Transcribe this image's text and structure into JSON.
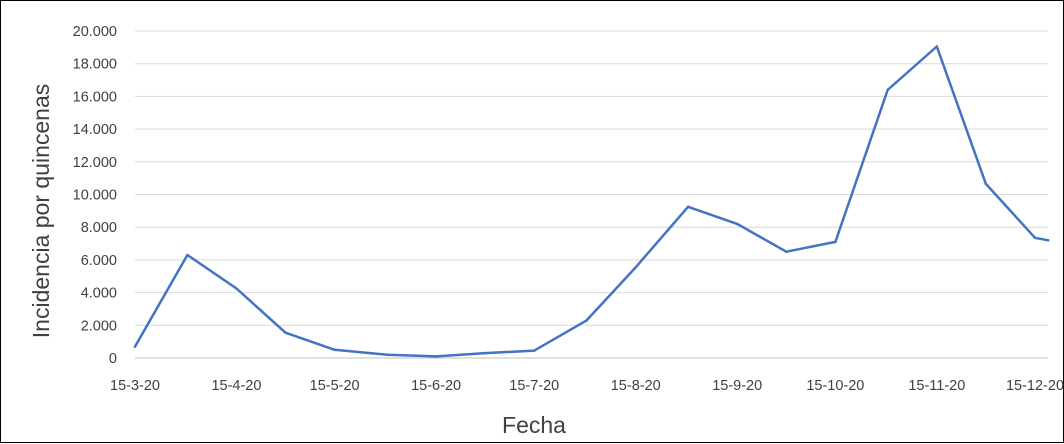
{
  "chart_data": {
    "type": "line",
    "title": "",
    "xlabel": "Fecha",
    "ylabel": "Incidencia  por quincenas",
    "x_tick_labels": [
      "15-3-20",
      "15-4-20",
      "15-5-20",
      "15-6-20",
      "15-7-20",
      "15-8-20",
      "15-9-20",
      "15-10-20",
      "15-11-20",
      "15-12-20"
    ],
    "y_tick_labels": [
      "0",
      "2.000",
      "4.000",
      "6.000",
      "8.000",
      "10.000",
      "12.000",
      "14.000",
      "16.000",
      "18.000",
      "20.000"
    ],
    "ylim": [
      0,
      20000
    ],
    "grid": true,
    "legend": "none",
    "series": [
      {
        "color": "#4472C4",
        "x": [
          "15-3-20",
          "31-3-20",
          "15-4-20",
          "30-4-20",
          "15-5-20",
          "31-5-20",
          "15-6-20",
          "30-6-20",
          "15-7-20",
          "31-7-20",
          "15-8-20",
          "31-8-20",
          "15-9-20",
          "30-9-20",
          "15-10-20",
          "31-10-20",
          "15-11-20",
          "30-11-20",
          "15-12-20",
          "19-12-20"
        ],
        "values": [
          700,
          6300,
          4250,
          1550,
          500,
          200,
          100,
          300,
          450,
          2300,
          5550,
          9250,
          8200,
          6500,
          7100,
          16400,
          19050,
          10650,
          7350,
          7200
        ]
      }
    ]
  }
}
